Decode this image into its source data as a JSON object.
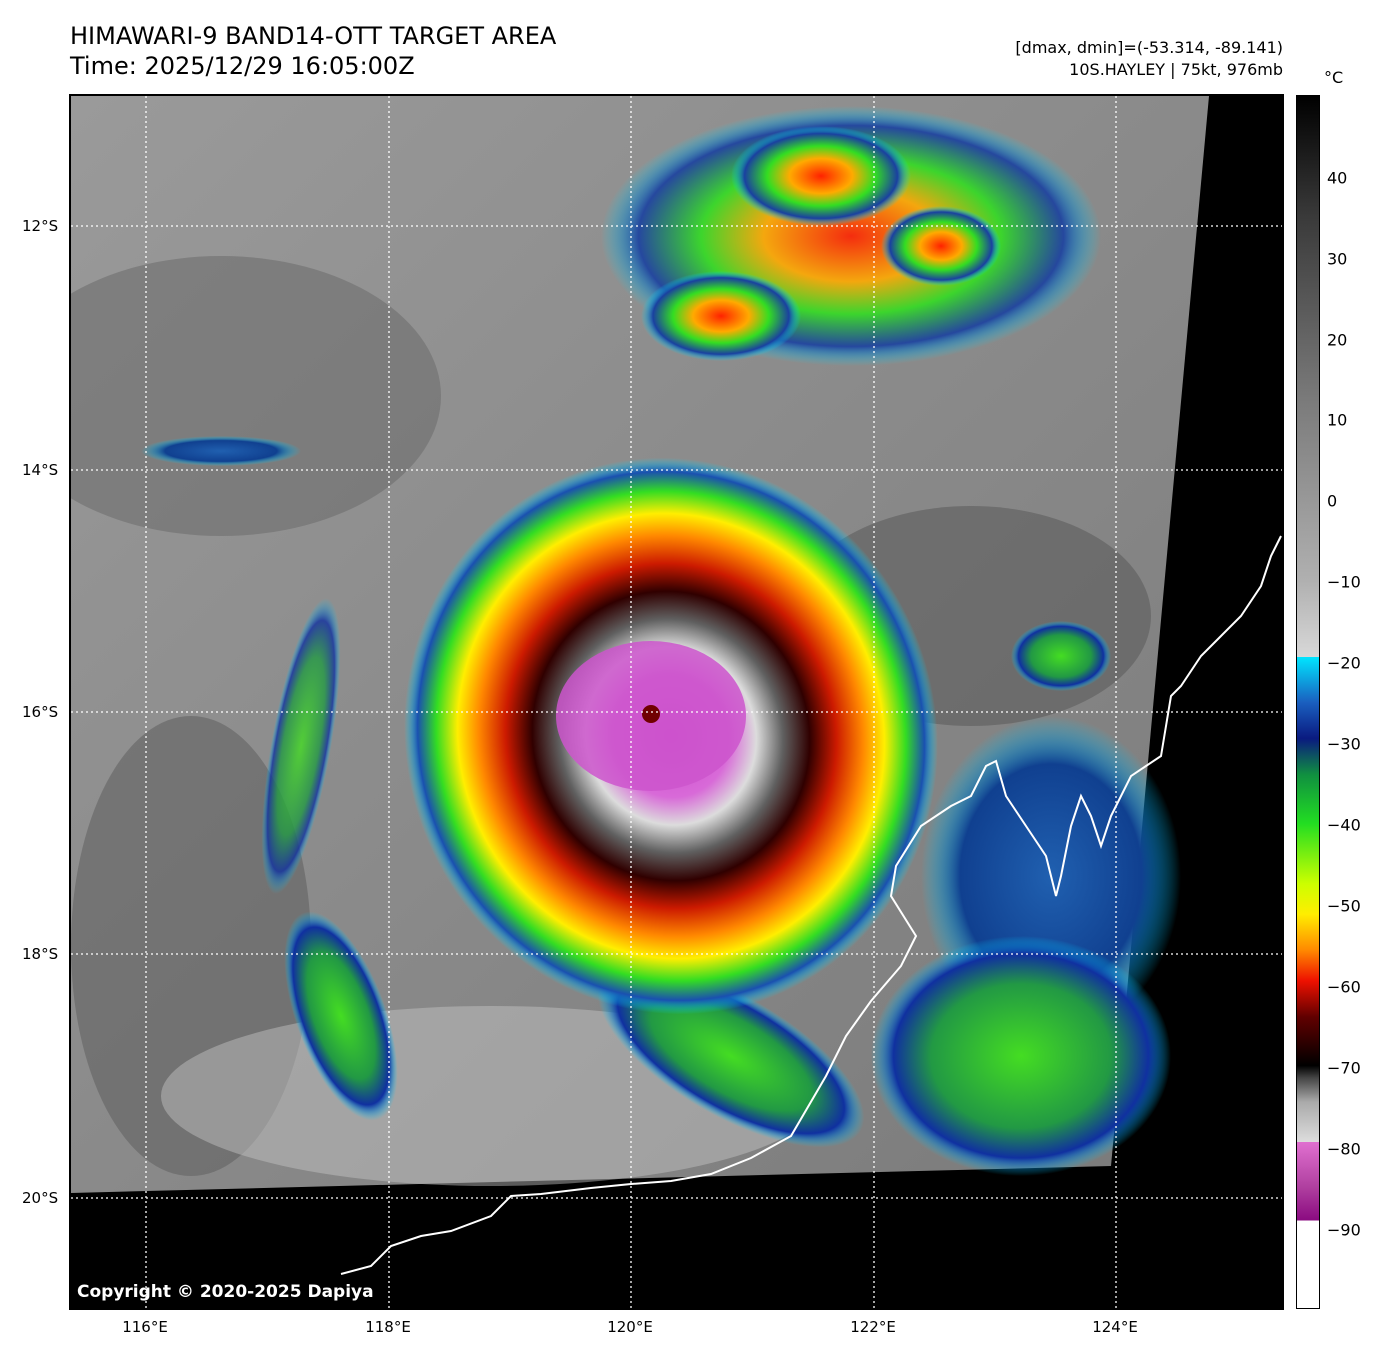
{
  "header": {
    "title_line1": "HIMAWARI-9 BAND14-OTT TARGET AREA",
    "title_line2": "Time: 2025/12/29 16:05:00Z",
    "info_line1": "[dmax, dmin]=(-53.314, -89.141)",
    "info_line2": "10S.HAYLEY | 75kt, 976mb"
  },
  "map": {
    "copyright": "Copyright © 2020-2025 Dapiya",
    "lat_labels": [
      "12°S",
      "14°S",
      "16°S",
      "18°S",
      "20°S"
    ],
    "lon_labels": [
      "116°E",
      "118°E",
      "120°E",
      "122°E",
      "124°E"
    ],
    "eye_label": ""
  },
  "colorbar": {
    "unit": "°C",
    "ticks": [
      "40",
      "30",
      "20",
      "10",
      "0",
      "−10",
      "−20",
      "−30",
      "−40",
      "−50",
      "−60",
      "−70",
      "−80",
      "−90"
    ]
  }
}
